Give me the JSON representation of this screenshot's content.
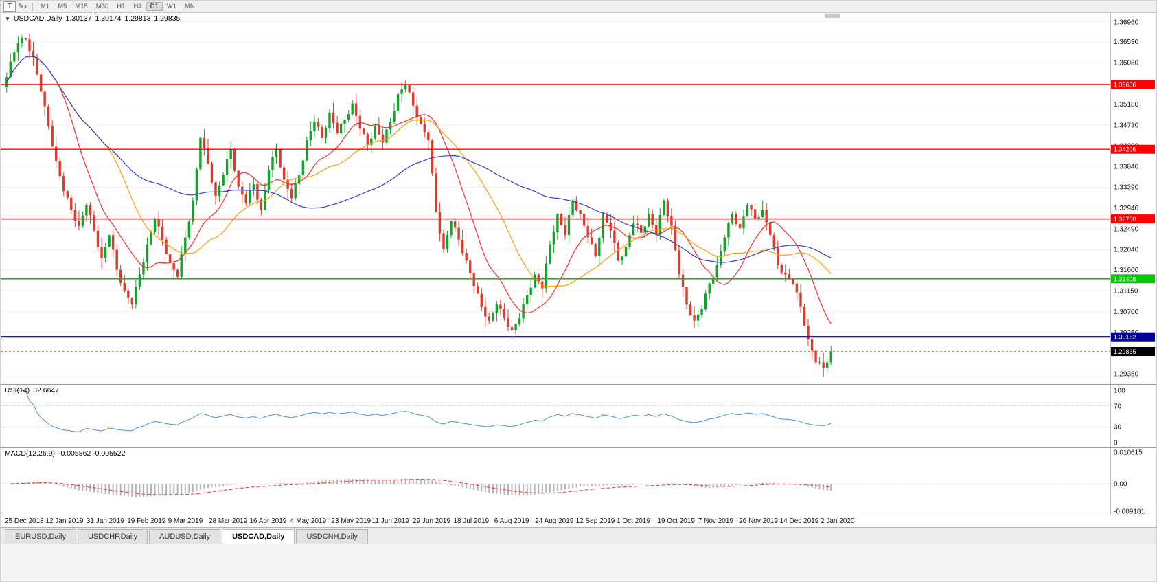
{
  "toolbar": {
    "templates_button_label": "T",
    "pointer_tool_glyph": "✎",
    "caret_glyph": "▾",
    "timeframes": [
      "M1",
      "M5",
      "M15",
      "M30",
      "H1",
      "H4",
      "D1",
      "W1",
      "MN"
    ],
    "active_timeframe": "D1"
  },
  "icons": {
    "collapse": "▼"
  },
  "tabs": {
    "items": [
      "EURUSD,Daily",
      "USDCHF,Daily",
      "AUDUSD,Daily",
      "USDCAD,Daily",
      "USDCNH,Daily"
    ],
    "active": "USDCAD,Daily"
  },
  "colors": {
    "up": "#12a32b",
    "up_stroke": "#0a7a1d",
    "down": "#e03a2b",
    "down_stroke": "#9e1f16",
    "ma_fast": "#ff2a2a",
    "ma_mid": "#ff9c00",
    "ma_slow": "#2f3fd3",
    "rsi_line": "#4f8fd0",
    "macd_hist": "#b4b4b4",
    "macd_signal": "#ff2a2a",
    "level_red": "#ff0000",
    "level_green": "#00cc00",
    "level_blue": "#000096",
    "current_price_bg": "#000000",
    "grid": "#efefef",
    "axis_line": "#808080"
  },
  "chart_data": {
    "type": "candlestick",
    "title": "USDCAD,Daily",
    "symbol": "USDCAD",
    "timeframe": "Daily",
    "last_ohlc_text": {
      "open": "1.30137",
      "high": "1.30174",
      "low": "1.29813",
      "close": "1.29835"
    },
    "ylim": [
      1.2913,
      1.3715
    ],
    "price_ticks": [
      "1.36960",
      "1.36530",
      "1.36080",
      "1.35630",
      "1.35180",
      "1.34730",
      "1.34280",
      "1.33840",
      "1.33390",
      "1.32940",
      "1.32490",
      "1.32040",
      "1.31600",
      "1.31150",
      "1.30700",
      "1.30250",
      "1.29800",
      "1.29350"
    ],
    "x_labels": [
      "25 Dec 2018",
      "12 Jan 2019",
      "31 Jan 2019",
      "19 Feb 2019",
      "9 Mar 2019",
      "28 Mar 2019",
      "16 Apr 2019",
      "4 May 2019",
      "23 May 2019",
      "11 Jun 2019",
      "29 Jun 2019",
      "18 Jul 2019",
      "6 Aug 2019",
      "24 Aug 2019",
      "12 Sep 2019",
      "1 Oct 2019",
      "19 Oct 2019",
      "7 Nov 2019",
      "26 Nov 2019",
      "14 Dec 2019",
      "2 Jan 2020"
    ],
    "closes": [
      1.3555,
      1.361,
      1.365,
      1.3658,
      1.362,
      1.3545,
      1.347,
      1.3395,
      1.333,
      1.329,
      1.3255,
      1.33,
      1.3245,
      1.3185,
      1.3235,
      1.316,
      1.3115,
      1.3085,
      1.315,
      1.3215,
      1.327,
      1.3225,
      1.3175,
      1.3145,
      1.323,
      1.331,
      1.3445,
      1.339,
      1.332,
      1.3365,
      1.342,
      1.334,
      1.3305,
      1.3345,
      1.329,
      1.3375,
      1.342,
      1.3355,
      1.3315,
      1.3365,
      1.344,
      1.348,
      1.3445,
      1.35,
      1.3455,
      1.3485,
      1.352,
      1.3465,
      1.343,
      1.347,
      1.3435,
      1.348,
      1.354,
      1.356,
      1.3515,
      1.3475,
      1.344,
      1.3285,
      1.3205,
      1.3265,
      1.3225,
      1.318,
      1.3125,
      1.308,
      1.305,
      1.3085,
      1.3055,
      1.303,
      1.3055,
      1.3105,
      1.315,
      1.312,
      1.3215,
      1.328,
      1.3235,
      1.331,
      1.328,
      1.323,
      1.319,
      1.328,
      1.3245,
      1.318,
      1.321,
      1.326,
      1.324,
      1.328,
      1.3235,
      1.331,
      1.3255,
      1.315,
      1.3085,
      1.305,
      1.3075,
      1.313,
      1.317,
      1.323,
      1.328,
      1.325,
      1.33,
      1.327,
      1.329,
      1.3235,
      1.317,
      1.315,
      1.313,
      1.308,
      1.301,
      1.296,
      1.2948,
      1.29835
    ],
    "levels": [
      {
        "price": 1.35606,
        "label": "1.35606",
        "color": "#ff0000",
        "width": 1.4
      },
      {
        "price": 1.34206,
        "label": "1.34206",
        "color": "#ff0000",
        "width": 1.4
      },
      {
        "price": 1.327,
        "label": "1.32700",
        "color": "#ff0000",
        "width": 1.4
      },
      {
        "price": 1.31405,
        "label": "1.31405",
        "color": "#00cc00",
        "width": 1.6
      },
      {
        "price": 1.30152,
        "label": "1.30152",
        "color": "#000096",
        "width": 2.2
      }
    ],
    "current_price": {
      "price": 1.29835,
      "label": "1.29835",
      "bg": "#000000"
    },
    "overlays": [
      {
        "name": "MA fast",
        "color": "#ff2a2a"
      },
      {
        "name": "MA medium",
        "color": "#ff9c00"
      },
      {
        "name": "MA slow",
        "color": "#2f3fd3"
      }
    ],
    "indicators": [
      {
        "type": "rsi",
        "label": "RSI(14)",
        "value_text": "32.6647",
        "ticks": [
          100,
          70,
          30,
          0
        ],
        "guide_levels": [
          70,
          30
        ]
      },
      {
        "type": "macd",
        "label": "MACD(12,26,9)",
        "values_text": "-0.005862 -0.005522",
        "ticks": [
          {
            "value": 0.010615,
            "label": "0.010615"
          },
          {
            "value": 0.0,
            "label": "0.00"
          },
          {
            "value": -0.009181,
            "label": "-0.009181"
          }
        ]
      }
    ]
  }
}
